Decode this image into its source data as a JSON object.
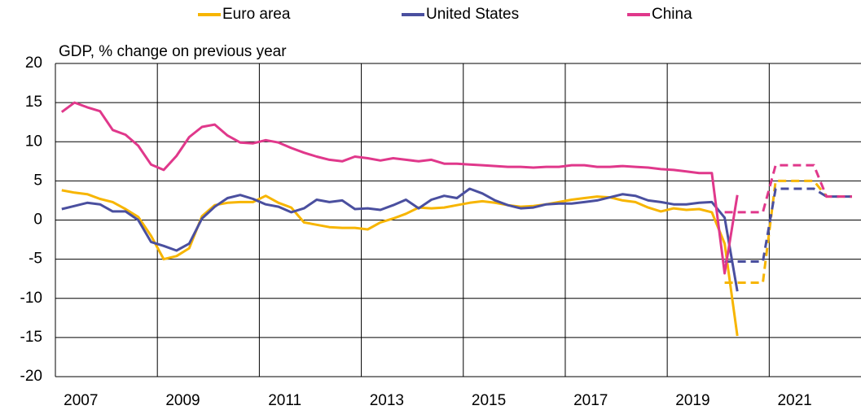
{
  "chart_data": {
    "type": "line",
    "y_label": "GDP, % change on previous year",
    "x": [
      2007.125,
      2007.375,
      2007.625,
      2007.875,
      2008.125,
      2008.375,
      2008.625,
      2008.875,
      2009.125,
      2009.375,
      2009.625,
      2009.875,
      2010.125,
      2010.375,
      2010.625,
      2010.875,
      2011.125,
      2011.375,
      2011.625,
      2011.875,
      2012.125,
      2012.375,
      2012.625,
      2012.875,
      2013.125,
      2013.375,
      2013.625,
      2013.875,
      2014.125,
      2014.375,
      2014.625,
      2014.875,
      2015.125,
      2015.375,
      2015.625,
      2015.875,
      2016.125,
      2016.375,
      2016.625,
      2016.875,
      2017.125,
      2017.375,
      2017.625,
      2017.875,
      2018.125,
      2018.375,
      2018.625,
      2018.875,
      2019.125,
      2019.375,
      2019.625,
      2019.875,
      2020.125,
      2020.375,
      2020.625,
      2020.875,
      2021.125,
      2021.375,
      2021.625,
      2021.875,
      2022.125,
      2022.375,
      2022.625
    ],
    "xlim": [
      2007,
      2022.8
    ],
    "xticks": [
      2007,
      2009,
      2011,
      2013,
      2015,
      2017,
      2019,
      2021
    ],
    "ylim": [
      -20,
      20
    ],
    "yticks": [
      20,
      15,
      10,
      5,
      0,
      -5,
      -10,
      -15,
      -20
    ],
    "grid": true,
    "legend": "top",
    "series": [
      {
        "name": "Euro area",
        "color": "#f7b500",
        "values": [
          3.8,
          3.5,
          3.3,
          2.7,
          2.3,
          1.4,
          0.4,
          -2.0,
          -5.0,
          -4.6,
          -3.6,
          0.5,
          1.9,
          2.2,
          2.3,
          2.3,
          3.1,
          2.2,
          1.6,
          -0.3,
          -0.6,
          -0.9,
          -1.0,
          -1.0,
          -1.2,
          -0.3,
          0.2,
          0.8,
          1.6,
          1.5,
          1.6,
          1.9,
          2.2,
          2.4,
          2.2,
          1.9,
          1.7,
          1.8,
          2.0,
          2.3,
          2.6,
          2.8,
          3.0,
          2.9,
          2.5,
          2.3,
          1.6,
          1.1,
          1.5,
          1.3,
          1.4,
          1.0,
          -3.0,
          -14.8,
          null,
          null,
          null,
          null,
          null,
          null,
          null,
          null,
          null
        ],
        "projection": [
          null,
          null,
          null,
          null,
          null,
          null,
          null,
          null,
          null,
          null,
          null,
          null,
          null,
          null,
          null,
          null,
          null,
          null,
          null,
          null,
          null,
          null,
          null,
          null,
          null,
          null,
          null,
          null,
          null,
          null,
          null,
          null,
          null,
          null,
          null,
          null,
          null,
          null,
          null,
          null,
          null,
          null,
          null,
          null,
          null,
          null,
          null,
          null,
          null,
          null,
          null,
          null,
          -8,
          -8,
          -8,
          -8,
          5,
          5,
          5,
          5,
          3,
          3,
          3
        ]
      },
      {
        "name": "United States",
        "color": "#4a4f9f",
        "values": [
          1.4,
          1.8,
          2.2,
          2.0,
          1.1,
          1.1,
          0.0,
          -2.8,
          -3.3,
          -3.9,
          -3.0,
          0.2,
          1.7,
          2.8,
          3.2,
          2.7,
          2.0,
          1.7,
          1.0,
          1.5,
          2.6,
          2.3,
          2.5,
          1.4,
          1.5,
          1.3,
          1.9,
          2.6,
          1.5,
          2.6,
          3.1,
          2.8,
          4.0,
          3.4,
          2.5,
          1.9,
          1.5,
          1.6,
          2.0,
          2.1,
          2.1,
          2.3,
          2.5,
          2.9,
          3.3,
          3.1,
          2.5,
          2.3,
          2.0,
          2.0,
          2.2,
          2.3,
          0.3,
          -9.1,
          null,
          null,
          null,
          null,
          null,
          null,
          null,
          null,
          null
        ],
        "projection": [
          null,
          null,
          null,
          null,
          null,
          null,
          null,
          null,
          null,
          null,
          null,
          null,
          null,
          null,
          null,
          null,
          null,
          null,
          null,
          null,
          null,
          null,
          null,
          null,
          null,
          null,
          null,
          null,
          null,
          null,
          null,
          null,
          null,
          null,
          null,
          null,
          null,
          null,
          null,
          null,
          null,
          null,
          null,
          null,
          null,
          null,
          null,
          null,
          null,
          null,
          null,
          null,
          -5.3,
          -5.3,
          -5.3,
          -5.3,
          4,
          4,
          4,
          4,
          3,
          3,
          3
        ]
      },
      {
        "name": "China",
        "color": "#e0388b",
        "values": [
          13.8,
          15.0,
          14.4,
          13.9,
          11.5,
          10.9,
          9.5,
          7.1,
          6.4,
          8.2,
          10.6,
          11.9,
          12.2,
          10.8,
          9.9,
          9.8,
          10.2,
          9.9,
          9.2,
          8.6,
          8.1,
          7.7,
          7.5,
          8.1,
          7.9,
          7.6,
          7.9,
          7.7,
          7.5,
          7.7,
          7.2,
          7.2,
          7.1,
          7.0,
          6.9,
          6.8,
          6.8,
          6.7,
          6.8,
          6.8,
          7.0,
          7.0,
          6.8,
          6.8,
          6.9,
          6.8,
          6.7,
          6.5,
          6.4,
          6.2,
          6.0,
          6.0,
          -6.8,
          3.2,
          null,
          null,
          null,
          null,
          null,
          null,
          null,
          null,
          null
        ],
        "projection": [
          null,
          null,
          null,
          null,
          null,
          null,
          null,
          null,
          null,
          null,
          null,
          null,
          null,
          null,
          null,
          null,
          null,
          null,
          null,
          null,
          null,
          null,
          null,
          null,
          null,
          null,
          null,
          null,
          null,
          null,
          null,
          null,
          null,
          null,
          null,
          null,
          null,
          null,
          null,
          null,
          null,
          null,
          null,
          null,
          null,
          null,
          null,
          null,
          null,
          null,
          null,
          null,
          1,
          1,
          1,
          1,
          7,
          7,
          7,
          7,
          3,
          3,
          3
        ]
      }
    ]
  }
}
